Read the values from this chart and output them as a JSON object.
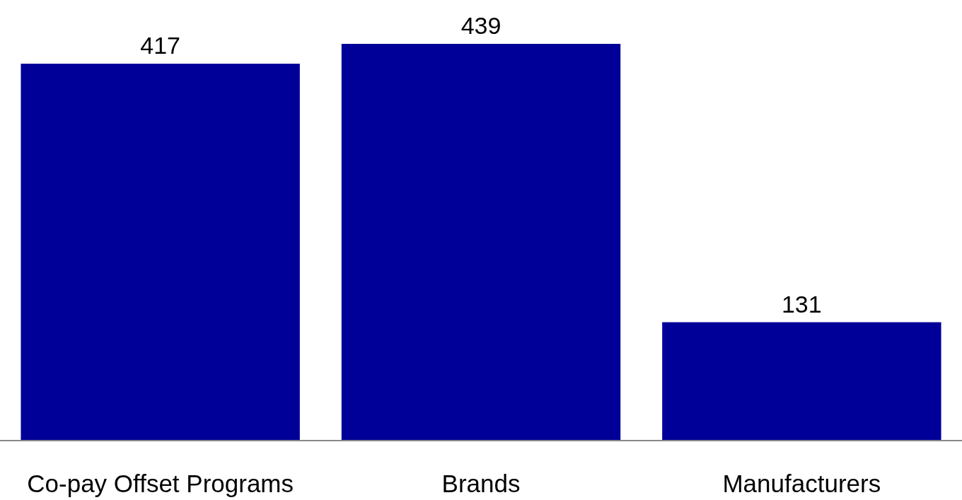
{
  "chart_data": {
    "type": "bar",
    "categories": [
      "Co-pay Offset Programs",
      "Brands",
      "Manufacturers"
    ],
    "values": [
      417,
      439,
      131
    ],
    "color": "#000099",
    "data_labels": true
  }
}
